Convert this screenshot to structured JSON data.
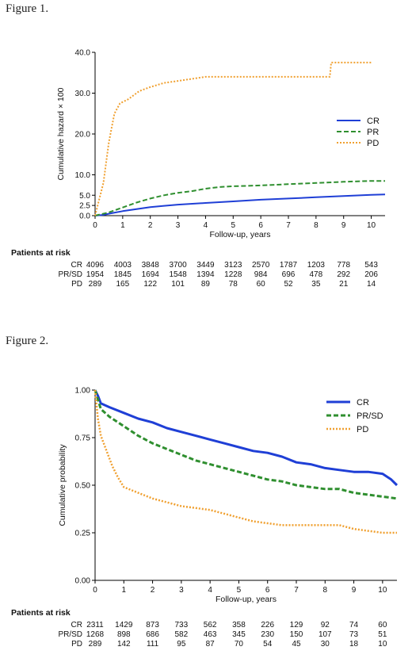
{
  "figures": [
    {
      "label": "Figure 1.",
      "chart_data": {
        "type": "line",
        "title": "",
        "xlabel": "Follow-up, years",
        "ylabel": "Cumulative hazard × 100",
        "xlim": [
          0,
          10.5
        ],
        "ylim": [
          0,
          40
        ],
        "x_ticks": [
          "0",
          "1",
          "2",
          "3",
          "4",
          "5",
          "6",
          "7",
          "8",
          "9",
          "10"
        ],
        "y_ticks": [
          "0.0",
          "2.5",
          "5.0",
          "10.0",
          "20.0",
          "30.0",
          "40.0"
        ],
        "grid": false,
        "legend_position": "right",
        "series": [
          {
            "name": "CR",
            "color": "#1f3fd6",
            "dash": "solid",
            "x": [
              0,
              0.3,
              0.6,
              1.0,
              1.5,
              2.0,
              2.5,
              3.0,
              4.0,
              5.0,
              6.0,
              7.0,
              8.0,
              9.0,
              10.0,
              10.5
            ],
            "y": [
              0,
              0.2,
              0.6,
              1.1,
              1.6,
              2.1,
              2.4,
              2.7,
              3.1,
              3.5,
              3.9,
              4.2,
              4.5,
              4.8,
              5.1,
              5.2
            ]
          },
          {
            "name": "PR",
            "color": "#2f8f2f",
            "dash": "dashed",
            "x": [
              0,
              0.5,
              1.0,
              1.5,
              2.0,
              2.5,
              3.0,
              3.5,
              4.0,
              4.5,
              5.0,
              6.0,
              7.0,
              8.0,
              9.0,
              10.0,
              10.5
            ],
            "y": [
              0,
              0.8,
              2.0,
              3.2,
              4.2,
              5.0,
              5.6,
              6.0,
              6.6,
              7.0,
              7.2,
              7.4,
              7.7,
              8.0,
              8.3,
              8.5,
              8.5
            ]
          },
          {
            "name": "PD",
            "color": "#f0a030",
            "dash": "dotted",
            "x": [
              0,
              0.3,
              0.5,
              0.7,
              0.9,
              1.2,
              1.6,
              2.0,
              2.5,
              3.0,
              3.5,
              4.0,
              5.0,
              6.0,
              7.0,
              8.0,
              8.5,
              8.55,
              9.0,
              10.0
            ],
            "y": [
              0,
              8,
              18,
              25,
              27.5,
              28.5,
              30.5,
              31.5,
              32.5,
              33,
              33.5,
              34,
              34,
              34,
              34,
              34,
              34,
              37.5,
              37.5,
              37.5
            ]
          }
        ]
      },
      "risk_table": {
        "title": "Patients at risk",
        "rows": [
          {
            "label": "CR",
            "values": [
              "4096",
              "4003",
              "3848",
              "3700",
              "3449",
              "3123",
              "2570",
              "1787",
              "1203",
              "778",
              "543"
            ]
          },
          {
            "label": "PR/SD",
            "values": [
              "1954",
              "1845",
              "1694",
              "1548",
              "1394",
              "1228",
              "984",
              "696",
              "478",
              "292",
              "206"
            ]
          },
          {
            "label": "PD",
            "values": [
              "289",
              "165",
              "122",
              "101",
              "89",
              "78",
              "60",
              "52",
              "35",
              "21",
              "14"
            ]
          }
        ]
      }
    },
    {
      "label": "Figure 2.",
      "chart_data": {
        "type": "line",
        "title": "",
        "xlabel": "Follow-up, years",
        "ylabel": "Cumulative probability",
        "xlim": [
          0,
          10.5
        ],
        "ylim": [
          0,
          1
        ],
        "x_ticks": [
          "0",
          "1",
          "2",
          "3",
          "4",
          "5",
          "6",
          "7",
          "8",
          "9",
          "10"
        ],
        "y_ticks": [
          "0.00",
          "0.25",
          "0.50",
          "0.75",
          "1.00"
        ],
        "grid": false,
        "legend_position": "top-right",
        "series": [
          {
            "name": "CR",
            "color": "#1f3fd6",
            "dash": "solid",
            "x": [
              0,
              0.1,
              0.2,
              0.5,
              1.0,
              1.5,
              2.0,
              2.5,
              3.0,
              3.5,
              4.0,
              4.5,
              5.0,
              5.5,
              6.0,
              6.5,
              7.0,
              7.5,
              8.0,
              8.5,
              9.0,
              9.5,
              10.0,
              10.3,
              10.5
            ],
            "y": [
              1.0,
              0.97,
              0.93,
              0.91,
              0.88,
              0.85,
              0.83,
              0.8,
              0.78,
              0.76,
              0.74,
              0.72,
              0.7,
              0.68,
              0.67,
              0.65,
              0.62,
              0.61,
              0.59,
              0.58,
              0.57,
              0.57,
              0.56,
              0.53,
              0.5
            ]
          },
          {
            "name": "PR/SD",
            "color": "#2f8f2f",
            "dash": "dashed",
            "x": [
              0,
              0.1,
              0.2,
              0.5,
              1.0,
              1.5,
              2.0,
              2.5,
              3.0,
              3.5,
              4.0,
              4.5,
              5.0,
              5.5,
              6.0,
              6.5,
              7.0,
              7.5,
              8.0,
              8.5,
              9.0,
              9.5,
              10.0,
              10.5
            ],
            "y": [
              1.0,
              0.95,
              0.9,
              0.86,
              0.81,
              0.76,
              0.72,
              0.69,
              0.66,
              0.63,
              0.61,
              0.59,
              0.57,
              0.55,
              0.53,
              0.52,
              0.5,
              0.49,
              0.48,
              0.48,
              0.46,
              0.45,
              0.44,
              0.43
            ]
          },
          {
            "name": "PD",
            "color": "#f0a030",
            "dash": "dotted",
            "x": [
              0,
              0.1,
              0.2,
              0.4,
              0.6,
              0.8,
              1.0,
              1.5,
              2.0,
              2.5,
              3.0,
              3.5,
              4.0,
              4.5,
              5.0,
              5.5,
              6.0,
              6.5,
              7.0,
              7.5,
              8.0,
              8.5,
              9.0,
              9.5,
              10.0,
              10.5
            ],
            "y": [
              1.0,
              0.85,
              0.76,
              0.68,
              0.6,
              0.54,
              0.49,
              0.46,
              0.43,
              0.41,
              0.39,
              0.38,
              0.37,
              0.35,
              0.33,
              0.31,
              0.3,
              0.29,
              0.29,
              0.29,
              0.29,
              0.29,
              0.27,
              0.26,
              0.25,
              0.25
            ]
          }
        ]
      },
      "risk_table": {
        "title": "Patients at risk",
        "rows": [
          {
            "label": "CR",
            "values": [
              "2311",
              "1429",
              "873",
              "733",
              "562",
              "358",
              "226",
              "129",
              "92",
              "74",
              "60"
            ]
          },
          {
            "label": "PR/SD",
            "values": [
              "1268",
              "898",
              "686",
              "582",
              "463",
              "345",
              "230",
              "150",
              "107",
              "73",
              "51"
            ]
          },
          {
            "label": "PD",
            "values": [
              "289",
              "142",
              "111",
              "95",
              "87",
              "70",
              "54",
              "45",
              "30",
              "18",
              "10"
            ]
          }
        ]
      }
    }
  ]
}
